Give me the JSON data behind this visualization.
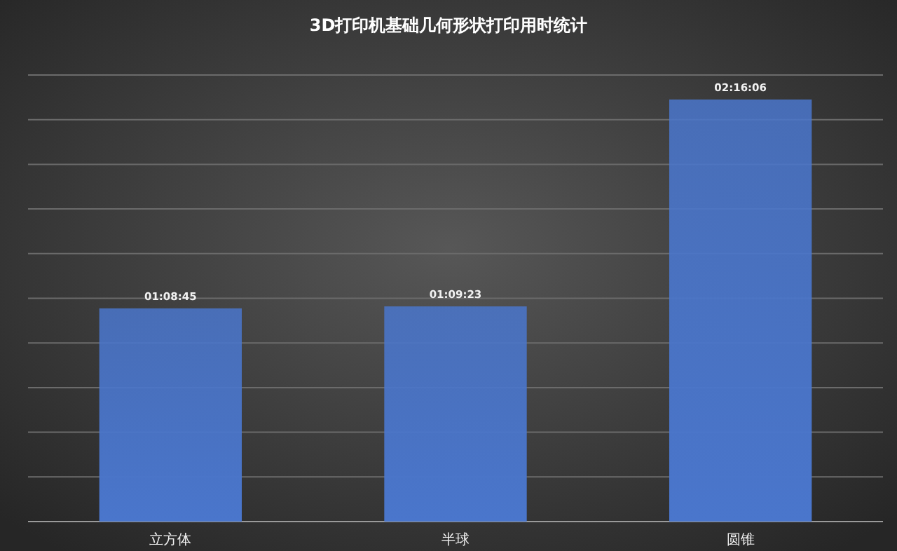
{
  "chart_data": {
    "type": "bar",
    "title": "3D打印机基础几何形状打印用时统计",
    "categories": [
      "立方体",
      "半球",
      "圆锥"
    ],
    "values": [
      1.14583,
      1.15639,
      2.26833
    ],
    "value_labels": [
      "01:08:45",
      "01:09:23",
      "02:16:06"
    ],
    "color": "#4a76cc",
    "ylim": [
      0,
      2.4
    ],
    "yticks": [
      {
        "value": 0,
        "label": null
      },
      {
        "value": 0.24,
        "label": null
      },
      {
        "value": 0.48,
        "label": null
      },
      {
        "value": 0.72,
        "label": null
      },
      {
        "value": 0.96,
        "label": null
      },
      {
        "value": 1.2,
        "label": null
      },
      {
        "value": 1.44,
        "label": null
      },
      {
        "value": 1.68,
        "label": null
      },
      {
        "value": 1.92,
        "label": null
      },
      {
        "value": 2.16,
        "label": null
      },
      {
        "value": 2.4,
        "label": null
      }
    ],
    "grid": "y",
    "tick_labels": "x"
  }
}
